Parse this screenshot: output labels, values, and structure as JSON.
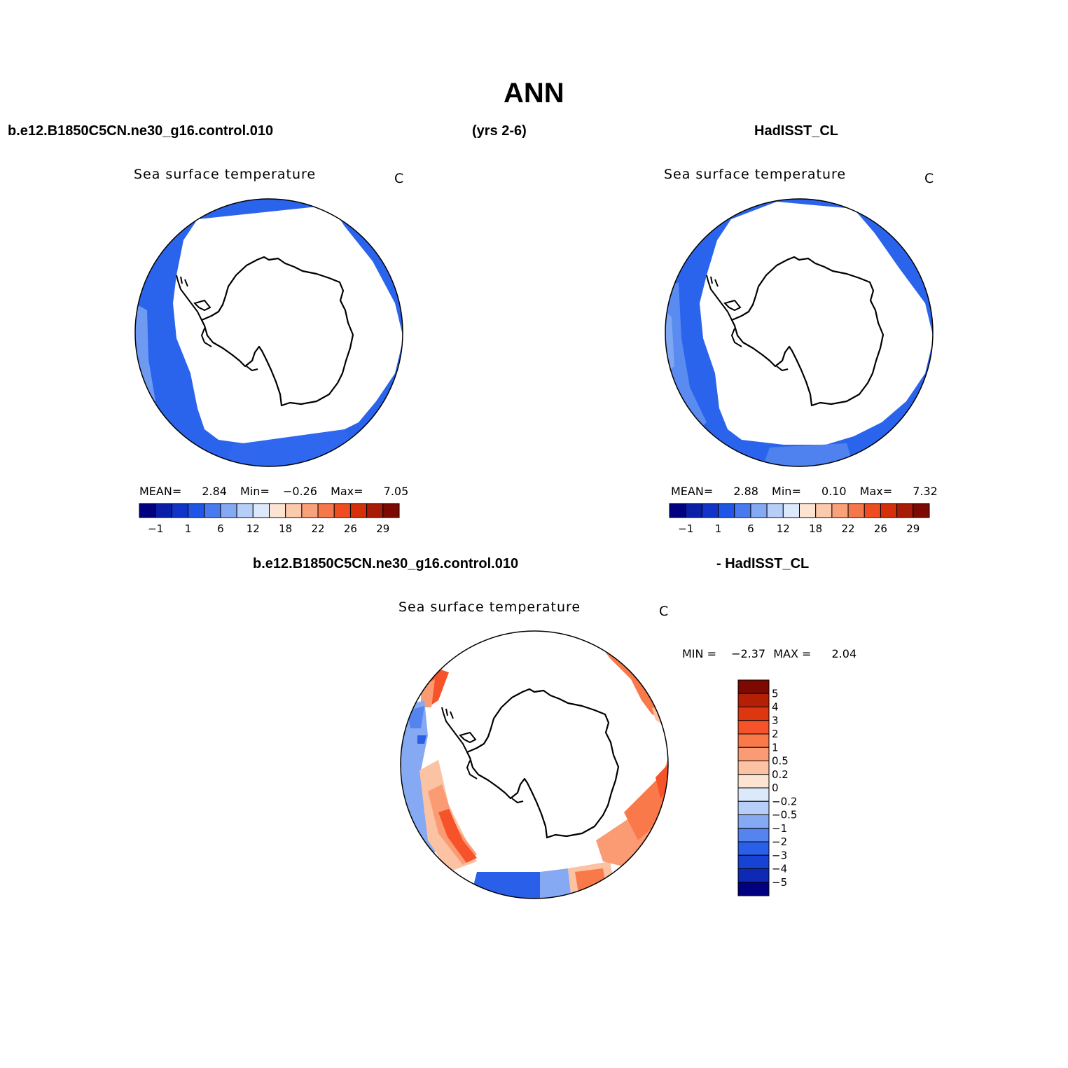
{
  "title": "ANN",
  "header": {
    "case_name": "b.e12.B1850C5CN.ne30_g16.control.010",
    "years": "(yrs 2-6)",
    "obs_name": "HadISST_CL"
  },
  "diff_header": {
    "case_name": "b.e12.B1850C5CN.ne30_g16.control.010",
    "obs_name": "- HadISST_CL"
  },
  "panels": [
    {
      "id": "model",
      "plot_title": "Sea surface temperature",
      "units": "C",
      "stats": {
        "mean_label": "MEAN=",
        "mean": "2.84",
        "min_label": "Min=",
        "min": "−0.26",
        "max_label": "Max=",
        "max": "7.05"
      }
    },
    {
      "id": "obs",
      "plot_title": "Sea surface temperature",
      "units": "C",
      "stats": {
        "mean_label": "MEAN=",
        "mean": "2.88",
        "min_label": "Min=",
        "min": "0.10",
        "max_label": "Max=",
        "max": "7.32"
      }
    },
    {
      "id": "diff",
      "plot_title": "Sea surface temperature",
      "units": "C",
      "stats": {
        "min_label": "MIN =",
        "min": "−2.37",
        "max_label": "MAX =",
        "max": "2.04"
      }
    }
  ],
  "field_colorbar": {
    "colors": [
      "#000080",
      "#0a1fa8",
      "#1233c8",
      "#2155e6",
      "#4a7af0",
      "#86a9f3",
      "#b7cff8",
      "#dce9fb",
      "#fde3d2",
      "#fbc9ac",
      "#f9a17a",
      "#f5784c",
      "#ee4d21",
      "#d4300a",
      "#a81b06",
      "#7c0a02"
    ],
    "labels": [
      "−1",
      "1",
      "6",
      "12",
      "18",
      "22",
      "26",
      "29"
    ]
  },
  "diff_colorbar": {
    "colors": [
      "#7c0a02",
      "#b42005",
      "#dd3711",
      "#f7532a",
      "#f9794a",
      "#fa9b74",
      "#fbc2a4",
      "#fde3d2",
      "#dce9fb",
      "#b7cff8",
      "#86a9f3",
      "#5584ee",
      "#2a5fe9",
      "#1743d4",
      "#0e29b4",
      "#000080"
    ],
    "labels": [
      "5",
      "4",
      "3",
      "2",
      "1",
      "0.5",
      "0.2",
      "0",
      "−0.2",
      "−0.5",
      "−1",
      "−2",
      "−3",
      "−4",
      "−5"
    ]
  },
  "icons": [
    "polar-map-globe",
    "antarctica-coastline"
  ]
}
